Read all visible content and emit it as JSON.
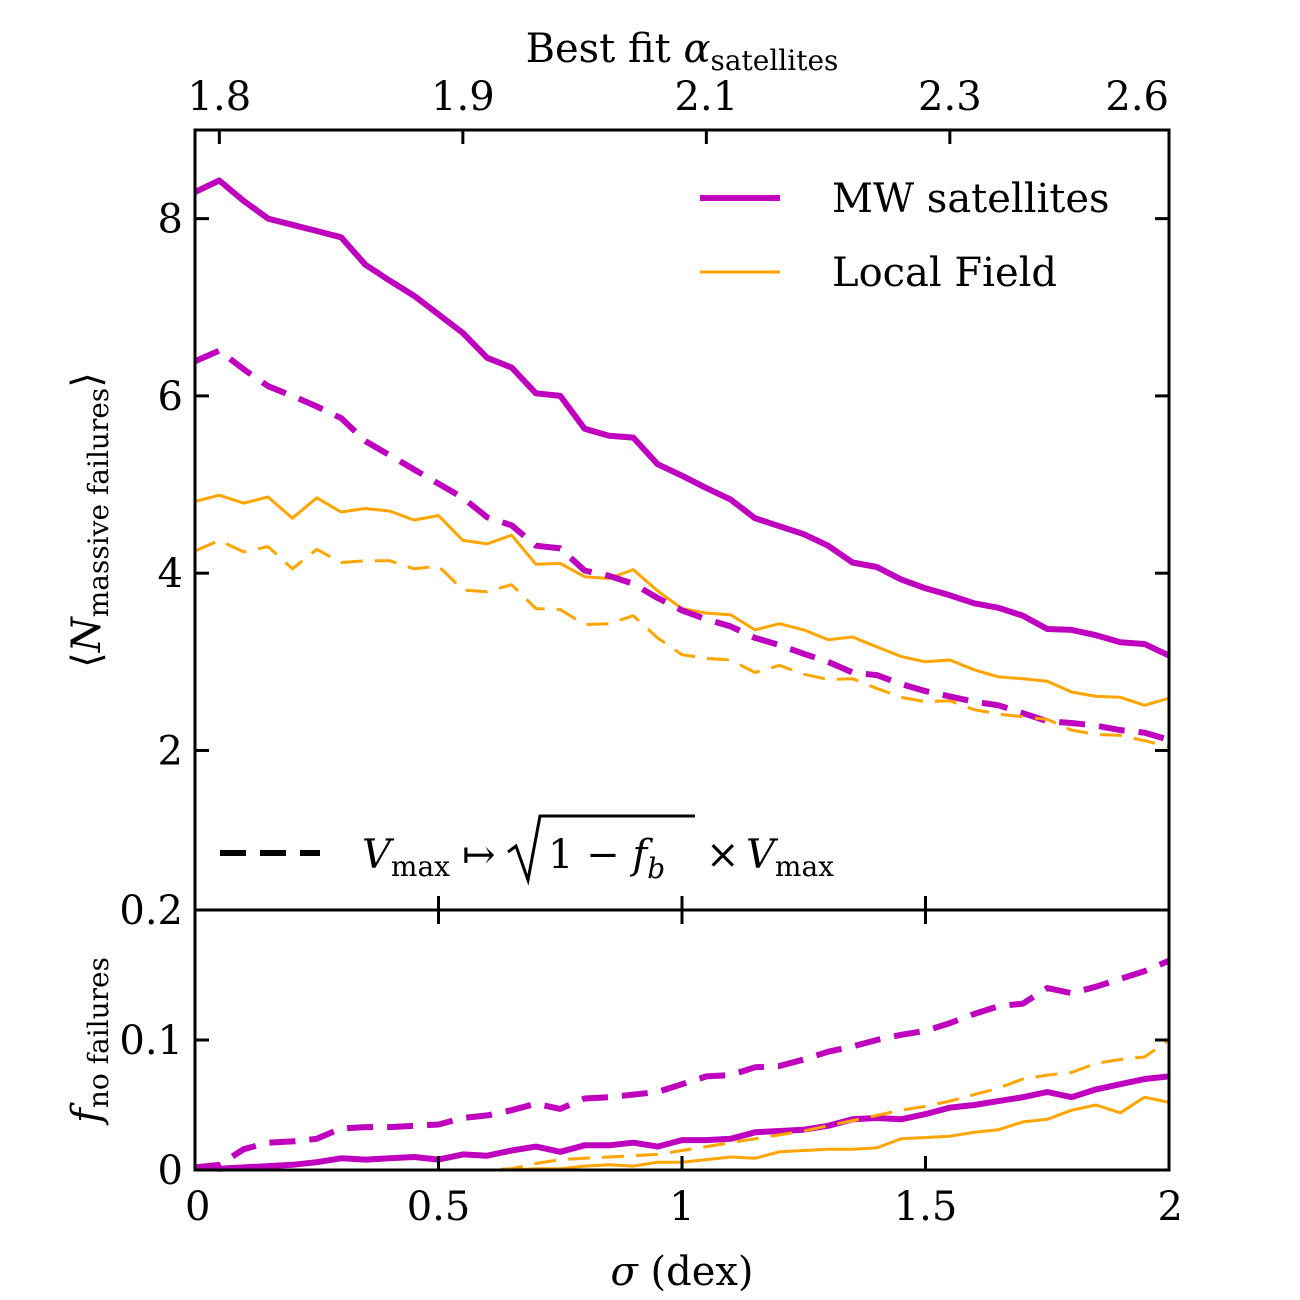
{
  "colors": {
    "mw": "#BF00BF",
    "local": "#FFA500",
    "axis": "#000000"
  },
  "chart_data": [
    {
      "type": "line",
      "panel": "top",
      "xlabel": "σ (dex)",
      "ylabel": "⟨N",
      "ylabel_sub": "massive failures",
      "ylabel_close": "⟩",
      "top_axis_title": "Best fit α",
      "top_axis_title_sub": "satellites",
      "top_ticks": [
        {
          "x": 0.05,
          "label": "1.8"
        },
        {
          "x": 0.55,
          "label": "1.9"
        },
        {
          "x": 1.05,
          "label": "2.1"
        },
        {
          "x": 1.55,
          "label": "2.3"
        },
        {
          "x": 2.0,
          "label": "2.6"
        }
      ],
      "xlim": [
        0,
        2
      ],
      "ylim": [
        0.2,
        9.0
      ],
      "yticks": [
        2,
        4,
        6,
        8
      ],
      "ytick_labels": [
        "2",
        "4",
        "6",
        "8"
      ],
      "bottom_label": "0.2",
      "x": [
        0,
        0.05,
        0.1,
        0.15,
        0.2,
        0.25,
        0.3,
        0.35,
        0.4,
        0.45,
        0.5,
        0.55,
        0.6,
        0.65,
        0.7,
        0.75,
        0.8,
        0.85,
        0.9,
        0.95,
        1.0,
        1.05,
        1.1,
        1.15,
        1.2,
        1.25,
        1.3,
        1.35,
        1.4,
        1.45,
        1.5,
        1.55,
        1.6,
        1.65,
        1.7,
        1.75,
        1.8,
        1.85,
        1.9,
        1.95,
        2.0
      ],
      "series": [
        {
          "name": "MW satellites",
          "style": "solid",
          "width": "thick",
          "values": [
            8.3,
            8.43,
            8.2,
            8.0,
            7.93,
            7.86,
            7.79,
            7.48,
            7.3,
            7.13,
            6.92,
            6.71,
            6.43,
            6.32,
            6.03,
            6.0,
            5.63,
            5.55,
            5.53,
            5.23,
            5.1,
            4.96,
            4.83,
            4.62,
            4.53,
            4.44,
            4.31,
            4.12,
            4.07,
            3.93,
            3.83,
            3.75,
            3.66,
            3.61,
            3.52,
            3.37,
            3.36,
            3.3,
            3.22,
            3.2,
            3.07
          ]
        },
        {
          "name": "Local Field",
          "style": "solid",
          "width": "thin",
          "values": [
            4.81,
            4.88,
            4.79,
            4.86,
            4.62,
            4.85,
            4.69,
            4.73,
            4.7,
            4.6,
            4.65,
            4.37,
            4.33,
            4.43,
            4.1,
            4.11,
            3.96,
            3.94,
            4.04,
            3.8,
            3.6,
            3.55,
            3.53,
            3.36,
            3.43,
            3.36,
            3.25,
            3.28,
            3.17,
            3.06,
            3.0,
            3.02,
            2.91,
            2.83,
            2.81,
            2.78,
            2.66,
            2.61,
            2.6,
            2.51,
            2.59
          ]
        },
        {
          "name": "MW satellites (scaled Vmax)",
          "style": "dashed",
          "width": "thick",
          "values": [
            6.39,
            6.51,
            6.3,
            6.11,
            6.0,
            5.88,
            5.75,
            5.49,
            5.33,
            5.17,
            5.01,
            4.85,
            4.63,
            4.54,
            4.31,
            4.28,
            4.03,
            3.97,
            3.88,
            3.72,
            3.58,
            3.48,
            3.4,
            3.27,
            3.19,
            3.09,
            3.0,
            2.88,
            2.85,
            2.75,
            2.67,
            2.61,
            2.55,
            2.51,
            2.42,
            2.33,
            2.31,
            2.28,
            2.23,
            2.2,
            2.12
          ]
        },
        {
          "name": "Local Field (scaled Vmax)",
          "style": "dashed",
          "width": "thin",
          "values": [
            4.25,
            4.37,
            4.24,
            4.3,
            4.05,
            4.27,
            4.12,
            4.14,
            4.14,
            4.05,
            4.08,
            3.81,
            3.79,
            3.87,
            3.6,
            3.59,
            3.42,
            3.43,
            3.52,
            3.27,
            3.08,
            3.04,
            3.02,
            2.88,
            2.96,
            2.86,
            2.8,
            2.81,
            2.7,
            2.6,
            2.55,
            2.56,
            2.46,
            2.41,
            2.38,
            2.35,
            2.23,
            2.18,
            2.17,
            2.11,
            2.04
          ]
        }
      ],
      "legend": [
        {
          "label": "MW satellites",
          "style": "solid",
          "width": "thick",
          "color": "#BF00BF"
        },
        {
          "label": "Local Field",
          "style": "solid",
          "width": "thin",
          "color": "#FFA500"
        }
      ],
      "annotation": {
        "style": "dashed",
        "lhs": "V",
        "lhs_sub": "max",
        "maps": "↦",
        "sqrt_content_a": "1 − f",
        "sqrt_content_sub": "b",
        "times": "×",
        "rhs": "V",
        "rhs_sub": "max"
      }
    },
    {
      "type": "line",
      "panel": "bottom",
      "xlabel": "σ (dex)",
      "ylabel": "f",
      "ylabel_sub": "no failures",
      "xlim": [
        0,
        2
      ],
      "ylim": [
        0,
        0.2
      ],
      "yticks": [
        0,
        0.1
      ],
      "ytick_labels": [
        "0",
        "0.1"
      ],
      "xticks": [
        0,
        0.5,
        1,
        1.5,
        2
      ],
      "xtick_labels": [
        "0",
        "0.5",
        "1",
        "1.5",
        "2"
      ],
      "x": [
        0,
        0.05,
        0.1,
        0.15,
        0.2,
        0.25,
        0.3,
        0.35,
        0.4,
        0.45,
        0.5,
        0.55,
        0.6,
        0.65,
        0.7,
        0.75,
        0.8,
        0.85,
        0.9,
        0.95,
        1.0,
        1.05,
        1.1,
        1.15,
        1.2,
        1.25,
        1.3,
        1.35,
        1.4,
        1.45,
        1.5,
        1.55,
        1.6,
        1.65,
        1.7,
        1.75,
        1.8,
        1.85,
        1.9,
        1.95,
        2.0
      ],
      "series": [
        {
          "name": "MW satellites",
          "style": "solid",
          "width": "thick",
          "values": [
            0.002,
            0.001,
            0.002,
            0.003,
            0.004,
            0.006,
            0.009,
            0.008,
            0.009,
            0.01,
            0.008,
            0.012,
            0.011,
            0.015,
            0.018,
            0.014,
            0.019,
            0.019,
            0.021,
            0.018,
            0.023,
            0.023,
            0.024,
            0.029,
            0.03,
            0.031,
            0.034,
            0.039,
            0.04,
            0.039,
            0.043,
            0.048,
            0.05,
            0.053,
            0.056,
            0.06,
            0.056,
            0.062,
            0.066,
            0.07,
            0.072
          ]
        },
        {
          "name": "Local Field",
          "style": "solid",
          "width": "thin",
          "values": [
            0.0,
            0.0,
            0.0,
            0.0,
            0.0,
            0.0,
            0.0,
            0.0,
            0.0,
            0.0,
            0.0,
            0.0,
            0.0,
            0.0,
            0.001,
            0.001,
            0.003,
            0.004,
            0.003,
            0.006,
            0.006,
            0.008,
            0.01,
            0.009,
            0.014,
            0.015,
            0.016,
            0.016,
            0.017,
            0.024,
            0.025,
            0.026,
            0.029,
            0.031,
            0.037,
            0.039,
            0.046,
            0.05,
            0.044,
            0.056,
            0.052
          ]
        },
        {
          "name": "MW satellites (scaled Vmax)",
          "style": "dashed",
          "width": "thick",
          "values": [
            0.002,
            0.004,
            0.016,
            0.021,
            0.022,
            0.024,
            0.032,
            0.033,
            0.033,
            0.034,
            0.035,
            0.04,
            0.042,
            0.046,
            0.051,
            0.047,
            0.055,
            0.056,
            0.058,
            0.06,
            0.066,
            0.072,
            0.073,
            0.079,
            0.08,
            0.085,
            0.091,
            0.095,
            0.1,
            0.104,
            0.107,
            0.113,
            0.12,
            0.126,
            0.128,
            0.14,
            0.136,
            0.141,
            0.147,
            0.153,
            0.161
          ]
        },
        {
          "name": "Local Field (scaled Vmax)",
          "style": "dashed",
          "width": "thin",
          "values": [
            0.0,
            0.0,
            0.0,
            0.0,
            0.0,
            0.0,
            0.0,
            0.0,
            0.0,
            0.0,
            0.0,
            0.0,
            0.0,
            0.001,
            0.005,
            0.008,
            0.009,
            0.01,
            0.011,
            0.012,
            0.015,
            0.018,
            0.021,
            0.024,
            0.027,
            0.03,
            0.034,
            0.038,
            0.042,
            0.046,
            0.049,
            0.053,
            0.058,
            0.063,
            0.07,
            0.073,
            0.075,
            0.082,
            0.085,
            0.087,
            0.1
          ]
        }
      ]
    }
  ]
}
